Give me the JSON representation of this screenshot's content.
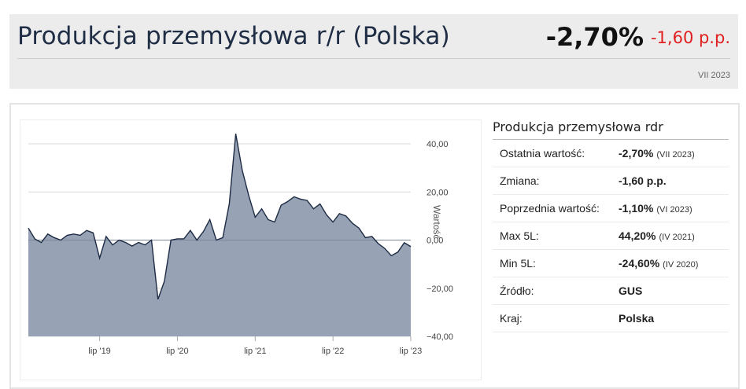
{
  "header": {
    "title": "Produkcja przemysłowa r/r (Polska)",
    "value": "-2,70%",
    "change": "-1,60 p.p.",
    "date": "VII 2023"
  },
  "info_panel": {
    "title": "Produkcja przemysłowa rdr",
    "rows": [
      {
        "label": "Ostatnia wartość:",
        "value": "-2,70%",
        "period": "(VII 2023)"
      },
      {
        "label": "Zmiana:",
        "value": "-1,60 p.p.",
        "period": ""
      },
      {
        "label": "Poprzednia wartość:",
        "value": "-1,10%",
        "period": "(VI 2023)"
      },
      {
        "label": "Max 5L:",
        "value": "44,20%",
        "period": "(IV 2021)"
      },
      {
        "label": "Min 5L:",
        "value": "-24,60%",
        "period": "(IV 2020)"
      },
      {
        "label": "Źródło:",
        "value": "GUS",
        "period": ""
      },
      {
        "label": "Kraj:",
        "value": "Polska",
        "period": ""
      }
    ]
  },
  "colors": {
    "area_fill": "#97a3b4",
    "line": "#1c2a44",
    "grid": "#d9d9d9",
    "negative": "#e02020"
  },
  "chart_data": {
    "type": "area",
    "title": "",
    "xlabel": "",
    "ylabel": "Wartość",
    "ylim": [
      -40,
      40
    ],
    "yticks": [
      "40,00",
      "20,00",
      "0,00",
      "−20,00",
      "−40,00"
    ],
    "ytick_values": [
      40,
      20,
      0,
      -20,
      -40
    ],
    "xticks": [
      "lip '19",
      "lip '20",
      "lip '21",
      "lip '22",
      "lip '23"
    ],
    "xtick_dates": [
      "2019-07",
      "2020-07",
      "2021-07",
      "2022-07",
      "2023-07"
    ],
    "grid": true,
    "series": [
      {
        "name": "",
        "x": [
          "2018-08",
          "2018-09",
          "2018-10",
          "2018-11",
          "2018-12",
          "2019-01",
          "2019-02",
          "2019-03",
          "2019-04",
          "2019-05",
          "2019-06",
          "2019-07",
          "2019-08",
          "2019-09",
          "2019-10",
          "2019-11",
          "2019-12",
          "2020-01",
          "2020-02",
          "2020-03",
          "2020-04",
          "2020-05",
          "2020-06",
          "2020-07",
          "2020-08",
          "2020-09",
          "2020-10",
          "2020-11",
          "2020-12",
          "2021-01",
          "2021-02",
          "2021-03",
          "2021-04",
          "2021-05",
          "2021-06",
          "2021-07",
          "2021-08",
          "2021-09",
          "2021-10",
          "2021-11",
          "2021-12",
          "2022-01",
          "2022-02",
          "2022-03",
          "2022-04",
          "2022-05",
          "2022-06",
          "2022-07",
          "2022-08",
          "2022-09",
          "2022-10",
          "2022-11",
          "2022-12",
          "2023-01",
          "2023-02",
          "2023-03",
          "2023-04",
          "2023-05",
          "2023-06",
          "2023-07"
        ],
        "values": [
          5.0,
          0.5,
          -1.0,
          2.5,
          1.0,
          0.0,
          2.0,
          2.5,
          2.0,
          4.0,
          3.0,
          -7.5,
          1.5,
          -2.0,
          0.0,
          -1.0,
          -2.5,
          -1.0,
          -2.0,
          0.0,
          -24.6,
          -17.0,
          0.0,
          0.5,
          0.5,
          4.0,
          0.0,
          3.5,
          8.5,
          0.0,
          1.0,
          15.0,
          44.2,
          29.0,
          18.5,
          9.5,
          13.0,
          8.5,
          7.5,
          14.5,
          16.0,
          18.0,
          17.0,
          16.5,
          13.0,
          15.0,
          10.5,
          7.5,
          11.0,
          10.0,
          7.0,
          5.0,
          1.0,
          1.5,
          -1.5,
          -3.5,
          -6.5,
          -5.0,
          -1.1,
          -2.7
        ]
      }
    ]
  }
}
